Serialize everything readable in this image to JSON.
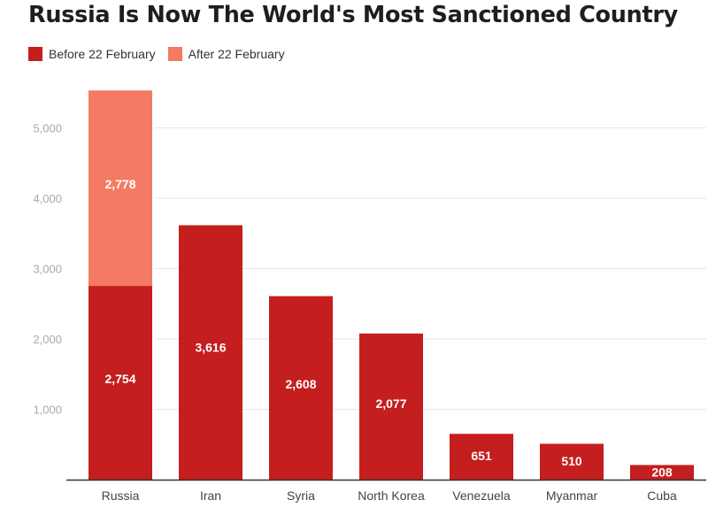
{
  "chart_data": {
    "type": "bar",
    "stacked": true,
    "title": "Russia Is Now The World's Most Sanctioned Country",
    "categories": [
      "Russia",
      "Iran",
      "Syria",
      "North Korea",
      "Venezuela",
      "Myanmar",
      "Cuba"
    ],
    "series": [
      {
        "name": "Before 22 February",
        "color": "#c41e1e",
        "values": [
          2754,
          3616,
          2608,
          2077,
          651,
          510,
          208
        ]
      },
      {
        "name": "After 22 February",
        "color": "#f47a63",
        "values": [
          2778,
          null,
          null,
          null,
          null,
          null,
          null
        ]
      }
    ],
    "data_labels": [
      {
        "category": "Russia",
        "series": "Before 22 February",
        "text": "2,754"
      },
      {
        "category": "Russia",
        "series": "After 22 February",
        "text": "2,778"
      },
      {
        "category": "Iran",
        "series": "Before 22 February",
        "text": "3,616"
      },
      {
        "category": "Syria",
        "series": "Before 22 February",
        "text": "2,608"
      },
      {
        "category": "North Korea",
        "series": "Before 22 February",
        "text": "2,077"
      },
      {
        "category": "Venezuela",
        "series": "Before 22 February",
        "text": "651"
      },
      {
        "category": "Myanmar",
        "series": "Before 22 February",
        "text": "510"
      },
      {
        "category": "Cuba",
        "series": "Before 22 February",
        "text": "208"
      }
    ],
    "yticks": [
      1000,
      2000,
      3000,
      4000,
      5000
    ],
    "ytick_labels": [
      "1,000",
      "2,000",
      "3,000",
      "4,000",
      "5,000"
    ],
    "ylim": [
      0,
      5600
    ],
    "grid": true,
    "legend_position": "top-left",
    "xlabel": "",
    "ylabel": ""
  }
}
